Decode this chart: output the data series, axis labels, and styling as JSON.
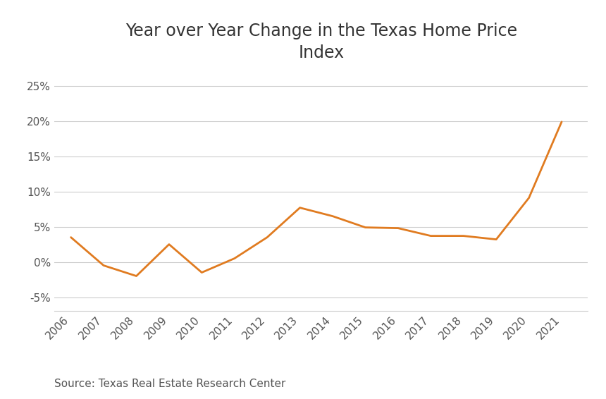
{
  "title": "Year over Year Change in the Texas Home Price\nIndex",
  "source": "Source: Texas Real Estate Research Center",
  "years": [
    2006,
    2007,
    2008,
    2009,
    2010,
    2011,
    2012,
    2013,
    2014,
    2015,
    2016,
    2017,
    2018,
    2019,
    2020,
    2021
  ],
  "values": [
    0.035,
    -0.005,
    -0.02,
    0.025,
    -0.015,
    0.005,
    0.035,
    0.077,
    0.065,
    0.049,
    0.048,
    0.037,
    0.037,
    0.032,
    0.091,
    0.199
  ],
  "line_color": "#E07B20",
  "line_width": 2.0,
  "yticks": [
    -0.05,
    0.0,
    0.05,
    0.1,
    0.15,
    0.2,
    0.25
  ],
  "ylim": [
    -0.07,
    0.27
  ],
  "xlim": [
    2005.5,
    2021.8
  ],
  "background_color": "#ffffff",
  "grid_color": "#cccccc",
  "title_fontsize": 17,
  "source_fontsize": 11,
  "tick_fontsize": 11
}
